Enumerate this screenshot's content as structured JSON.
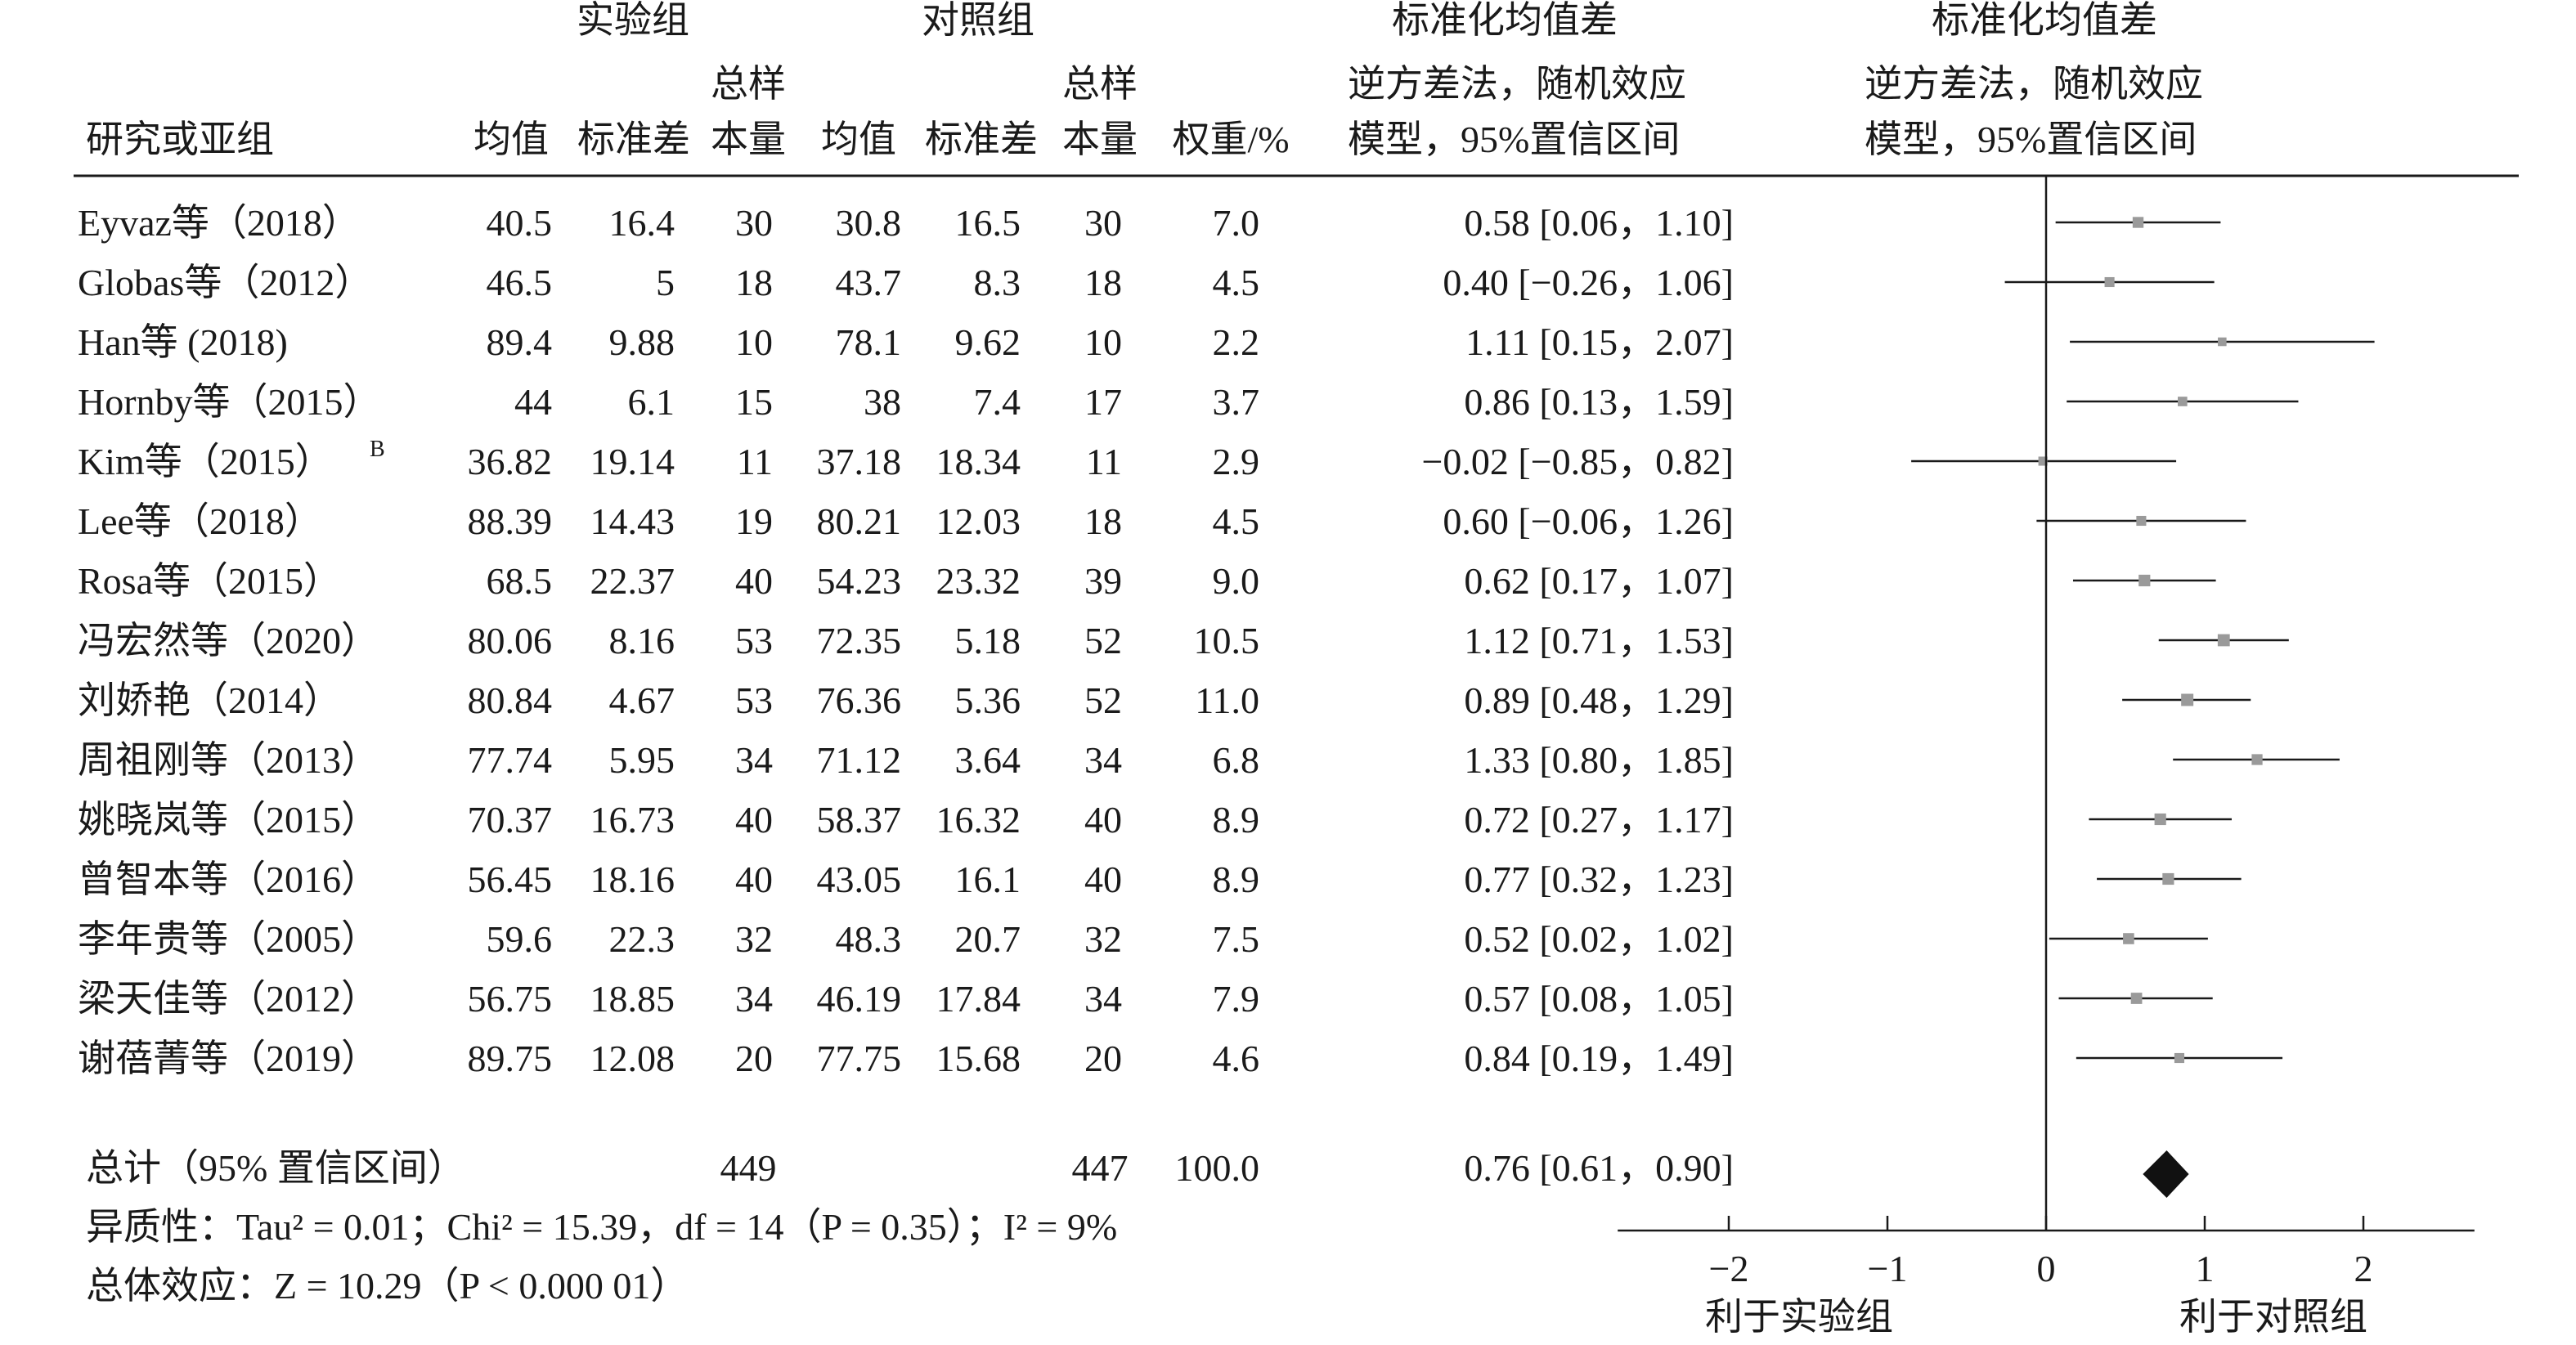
{
  "headers": {
    "group1": "实验组",
    "group2": "对照组",
    "effect_col": "标准化均值差",
    "plot_col": "标准化均值差",
    "study": "研究或亚组",
    "mean": "均值",
    "sd": "标准差",
    "total_top": "总样",
    "total_bottom": "本量",
    "weight": "权重/%",
    "method_line1": "逆方差法，随机效应",
    "method_line2": "模型，95%置信区间",
    "plot_method_line1": "逆方差法，随机效应",
    "plot_method_line2": "模型，95%置信区间"
  },
  "studies": [
    {
      "name": "Eyvaz等（2018）",
      "sup": "",
      "m1": "40.5",
      "sd1": "16.4",
      "n1": "30",
      "m2": "30.8",
      "sd2": "16.5",
      "n2": "30",
      "weight": "7.0",
      "ci_text": "0.58 [0.06，1.10]"
    },
    {
      "name": "Globas等（2012）",
      "sup": "",
      "m1": "46.5",
      "sd1": "5",
      "n1": "18",
      "m2": "43.7",
      "sd2": "8.3",
      "n2": "18",
      "weight": "4.5",
      "ci_text": "0.40 [−0.26，1.06]"
    },
    {
      "name": "Han等 (2018)",
      "sup": "",
      "m1": "89.4",
      "sd1": "9.88",
      "n1": "10",
      "m2": "78.1",
      "sd2": "9.62",
      "n2": "10",
      "weight": "2.2",
      "ci_text": "1.11 [0.15，2.07]"
    },
    {
      "name": "Hornby等（2015）",
      "sup": "",
      "m1": "44",
      "sd1": "6.1",
      "n1": "15",
      "m2": "38",
      "sd2": "7.4",
      "n2": "17",
      "weight": "3.7",
      "ci_text": "0.86 [0.13，1.59]"
    },
    {
      "name": "Kim等（2015）",
      "sup": "B",
      "m1": "36.82",
      "sd1": "19.14",
      "n1": "11",
      "m2": "37.18",
      "sd2": "18.34",
      "n2": "11",
      "weight": "2.9",
      "ci_text": "−0.02 [−0.85，0.82]"
    },
    {
      "name": "Lee等（2018）",
      "sup": "",
      "m1": "88.39",
      "sd1": "14.43",
      "n1": "19",
      "m2": "80.21",
      "sd2": "12.03",
      "n2": "18",
      "weight": "4.5",
      "ci_text": "0.60 [−0.06，1.26]"
    },
    {
      "name": "Rosa等（2015）",
      "sup": "",
      "m1": "68.5",
      "sd1": "22.37",
      "n1": "40",
      "m2": "54.23",
      "sd2": "23.32",
      "n2": "39",
      "weight": "9.0",
      "ci_text": "0.62 [0.17，1.07]"
    },
    {
      "name": "冯宏然等（2020）",
      "sup": "",
      "m1": "80.06",
      "sd1": "8.16",
      "n1": "53",
      "m2": "72.35",
      "sd2": "5.18",
      "n2": "52",
      "weight": "10.5",
      "ci_text": "1.12 [0.71，1.53]"
    },
    {
      "name": "刘娇艳（2014）",
      "sup": "",
      "m1": "80.84",
      "sd1": "4.67",
      "n1": "53",
      "m2": "76.36",
      "sd2": "5.36",
      "n2": "52",
      "weight": "11.0",
      "ci_text": "0.89 [0.48，1.29]"
    },
    {
      "name": "周祖刚等（2013）",
      "sup": "",
      "m1": "77.74",
      "sd1": "5.95",
      "n1": "34",
      "m2": "71.12",
      "sd2": "3.64",
      "n2": "34",
      "weight": "6.8",
      "ci_text": "1.33 [0.80，1.85]"
    },
    {
      "name": "姚晓岚等（2015）",
      "sup": "",
      "m1": "70.37",
      "sd1": "16.73",
      "n1": "40",
      "m2": "58.37",
      "sd2": "16.32",
      "n2": "40",
      "weight": "8.9",
      "ci_text": "0.72 [0.27，1.17]"
    },
    {
      "name": "曾智本等（2016）",
      "sup": "",
      "m1": "56.45",
      "sd1": "18.16",
      "n1": "40",
      "m2": "43.05",
      "sd2": "16.1",
      "n2": "40",
      "weight": "8.9",
      "ci_text": "0.77 [0.32，1.23]"
    },
    {
      "name": "李年贵等（2005）",
      "sup": "",
      "m1": "59.6",
      "sd1": "22.3",
      "n1": "32",
      "m2": "48.3",
      "sd2": "20.7",
      "n2": "32",
      "weight": "7.5",
      "ci_text": "0.52 [0.02，1.02]"
    },
    {
      "name": "梁天佳等（2012）",
      "sup": "",
      "m1": "56.75",
      "sd1": "18.85",
      "n1": "34",
      "m2": "46.19",
      "sd2": "17.84",
      "n2": "34",
      "weight": "7.9",
      "ci_text": "0.57 [0.08，1.05]"
    },
    {
      "name": "谢蓓菁等（2019）",
      "sup": "",
      "m1": "89.75",
      "sd1": "12.08",
      "n1": "20",
      "m2": "77.75",
      "sd2": "15.68",
      "n2": "20",
      "weight": "4.6",
      "ci_text": "0.84 [0.19，1.49]"
    }
  ],
  "total": {
    "name": "总计（95% 置信区间）",
    "n1": "449",
    "n2": "447",
    "weight": "100.0",
    "ci_text": "0.76 [0.61，0.90]"
  },
  "footer": {
    "heterogeneity": "异质性：Tau² = 0.01；Chi² = 15.39，df = 14（P = 0.35）；I² = 9%",
    "overall": "总体效应：Z = 10.29（P < 0.000 01）"
  },
  "axis": {
    "ticks": [
      "−2",
      "−1",
      "0",
      "1",
      "2"
    ],
    "left_label": "利于实验组",
    "right_label": "利于对照组"
  },
  "chart_data": {
    "type": "scatter",
    "title": "",
    "xlabel": "",
    "xlim": [
      -2.7,
      2.7
    ],
    "tick_values": [
      -2,
      -1,
      0,
      1,
      2
    ],
    "series": [
      {
        "points": [
          {
            "study": "Eyvaz等（2018）",
            "est": 0.58,
            "lo": 0.06,
            "hi": 1.1,
            "weight": 7.0
          },
          {
            "study": "Globas等（2012）",
            "est": 0.4,
            "lo": -0.26,
            "hi": 1.06,
            "weight": 4.5
          },
          {
            "study": "Han等 (2018)",
            "est": 1.11,
            "lo": 0.15,
            "hi": 2.07,
            "weight": 2.2
          },
          {
            "study": "Hornby等（2015）",
            "est": 0.86,
            "lo": 0.13,
            "hi": 1.59,
            "weight": 3.7
          },
          {
            "study": "Kim等（2015）B",
            "est": -0.02,
            "lo": -0.85,
            "hi": 0.82,
            "weight": 2.9
          },
          {
            "study": "Lee等（2018）",
            "est": 0.6,
            "lo": -0.06,
            "hi": 1.26,
            "weight": 4.5
          },
          {
            "study": "Rosa等（2015）",
            "est": 0.62,
            "lo": 0.17,
            "hi": 1.07,
            "weight": 9.0
          },
          {
            "study": "冯宏然等（2020）",
            "est": 1.12,
            "lo": 0.71,
            "hi": 1.53,
            "weight": 10.5
          },
          {
            "study": "刘娇艳（2014）",
            "est": 0.89,
            "lo": 0.48,
            "hi": 1.29,
            "weight": 11.0
          },
          {
            "study": "周祖刚等（2013）",
            "est": 1.33,
            "lo": 0.8,
            "hi": 1.85,
            "weight": 6.8
          },
          {
            "study": "姚晓岚等（2015）",
            "est": 0.72,
            "lo": 0.27,
            "hi": 1.17,
            "weight": 8.9
          },
          {
            "study": "曾智本等（2016）",
            "est": 0.77,
            "lo": 0.32,
            "hi": 1.23,
            "weight": 8.9
          },
          {
            "study": "李年贵等（2005）",
            "est": 0.52,
            "lo": 0.02,
            "hi": 1.02,
            "weight": 7.5
          },
          {
            "study": "梁天佳等（2012）",
            "est": 0.57,
            "lo": 0.08,
            "hi": 1.05,
            "weight": 7.9
          },
          {
            "study": "谢蓓菁等（2019）",
            "est": 0.84,
            "lo": 0.19,
            "hi": 1.49,
            "weight": 4.6
          }
        ]
      }
    ],
    "pooled": {
      "est": 0.76,
      "lo": 0.61,
      "hi": 0.9
    }
  }
}
